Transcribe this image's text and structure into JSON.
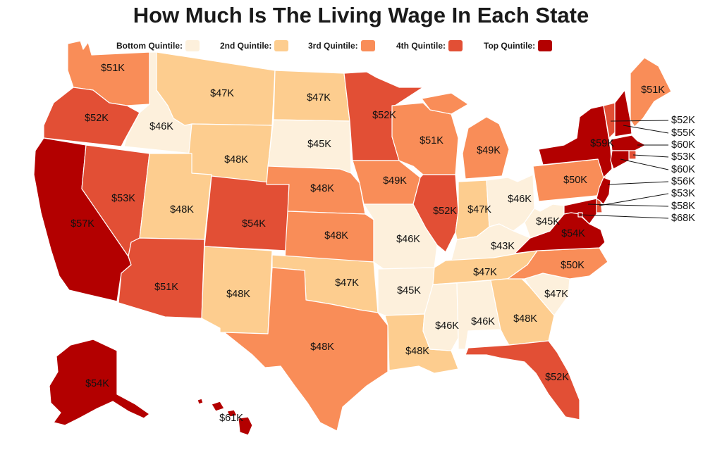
{
  "title": "How Much Is The Living Wage In Each State",
  "legend": [
    {
      "label": "Bottom Quintile:",
      "color": "#fdf0dc"
    },
    {
      "label": "2nd Quintile:",
      "color": "#fdcd8f"
    },
    {
      "label": "3rd Quintile:",
      "color": "#f98d58"
    },
    {
      "label": "4th Quintile:",
      "color": "#e24f35"
    },
    {
      "label": "Top Quintile:",
      "color": "#b30000"
    }
  ],
  "states": [
    {
      "id": "WA",
      "value": "$51K",
      "quintile": 3
    },
    {
      "id": "OR",
      "value": "$52K",
      "quintile": 4
    },
    {
      "id": "CA",
      "value": "$57K",
      "quintile": 5
    },
    {
      "id": "ID",
      "value": "$46K",
      "quintile": 1
    },
    {
      "id": "NV",
      "value": "$53K",
      "quintile": 4
    },
    {
      "id": "MT",
      "value": "$47K",
      "quintile": 2
    },
    {
      "id": "WY",
      "value": "$48K",
      "quintile": 2
    },
    {
      "id": "UT",
      "value": "$48K",
      "quintile": 2
    },
    {
      "id": "AZ",
      "value": "$51K",
      "quintile": 4
    },
    {
      "id": "CO",
      "value": "$54K",
      "quintile": 4
    },
    {
      "id": "NM",
      "value": "$48K",
      "quintile": 2
    },
    {
      "id": "ND",
      "value": "$47K",
      "quintile": 2
    },
    {
      "id": "SD",
      "value": "$45K",
      "quintile": 1
    },
    {
      "id": "NE",
      "value": "$48K",
      "quintile": 3
    },
    {
      "id": "KS",
      "value": "$48K",
      "quintile": 3
    },
    {
      "id": "OK",
      "value": "$47K",
      "quintile": 2
    },
    {
      "id": "TX",
      "value": "$48K",
      "quintile": 3
    },
    {
      "id": "MN",
      "value": "$52K",
      "quintile": 4
    },
    {
      "id": "IA",
      "value": "$49K",
      "quintile": 3
    },
    {
      "id": "MO",
      "value": "$46K",
      "quintile": 1
    },
    {
      "id": "AR",
      "value": "$45K",
      "quintile": 1
    },
    {
      "id": "LA",
      "value": "$48K",
      "quintile": 2
    },
    {
      "id": "WI",
      "value": "$51K",
      "quintile": 3
    },
    {
      "id": "IL",
      "value": "$52K",
      "quintile": 4
    },
    {
      "id": "MI",
      "value": "$49K",
      "quintile": 3
    },
    {
      "id": "IN",
      "value": "$47K",
      "quintile": 2
    },
    {
      "id": "OH",
      "value": "$46K",
      "quintile": 1
    },
    {
      "id": "KY",
      "value": "$43K",
      "quintile": 1
    },
    {
      "id": "TN",
      "value": "$47K",
      "quintile": 2
    },
    {
      "id": "MS",
      "value": "$46K",
      "quintile": 1
    },
    {
      "id": "AL",
      "value": "$46K",
      "quintile": 1
    },
    {
      "id": "GA",
      "value": "$48K",
      "quintile": 2
    },
    {
      "id": "FL",
      "value": "$52K",
      "quintile": 4
    },
    {
      "id": "SC",
      "value": "$47K",
      "quintile": 1
    },
    {
      "id": "NC",
      "value": "$50K",
      "quintile": 3
    },
    {
      "id": "VA",
      "value": "$54K",
      "quintile": 5
    },
    {
      "id": "WV",
      "value": "$45K",
      "quintile": 1
    },
    {
      "id": "PA",
      "value": "$50K",
      "quintile": 3
    },
    {
      "id": "NY",
      "value": "$59K",
      "quintile": 5
    },
    {
      "id": "ME",
      "value": "$51K",
      "quintile": 3
    },
    {
      "id": "VT",
      "value": "$52K",
      "quintile": 4
    },
    {
      "id": "NH",
      "value": "$55K",
      "quintile": 5
    },
    {
      "id": "MA",
      "value": "$60K",
      "quintile": 5
    },
    {
      "id": "RI",
      "value": "$53K",
      "quintile": 4
    },
    {
      "id": "CT",
      "value": "$60K",
      "quintile": 5
    },
    {
      "id": "NJ",
      "value": "$56K",
      "quintile": 5
    },
    {
      "id": "DE",
      "value": "$53K",
      "quintile": 4
    },
    {
      "id": "MD",
      "value": "$58K",
      "quintile": 5
    },
    {
      "id": "DC",
      "value": "$68K",
      "quintile": 5
    },
    {
      "id": "AK",
      "value": "$54K",
      "quintile": 5
    },
    {
      "id": "HI",
      "value": "$61K",
      "quintile": 5
    }
  ]
}
